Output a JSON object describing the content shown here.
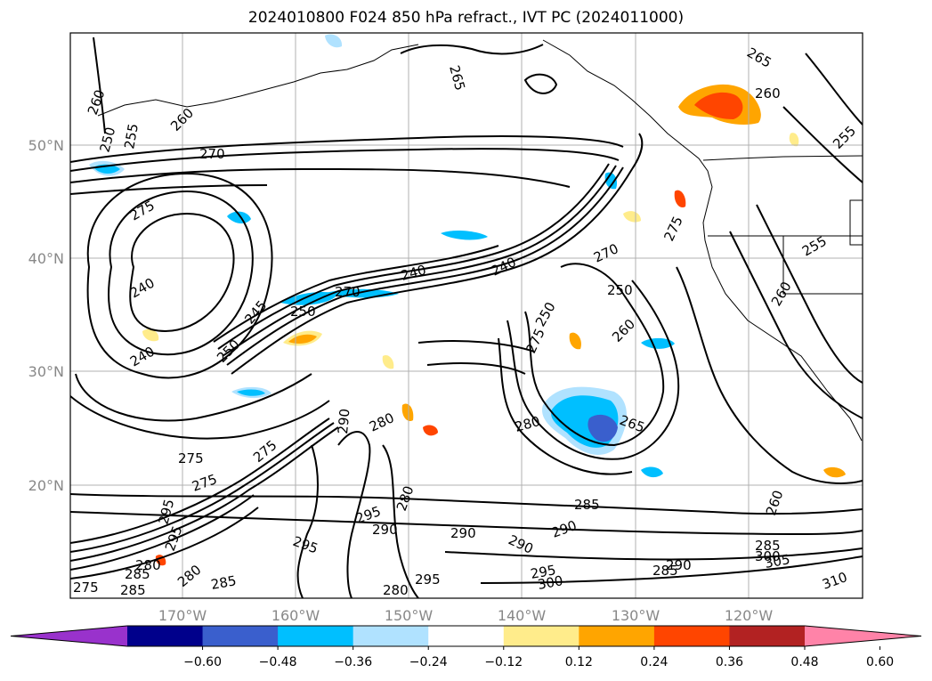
{
  "title": "2024010800 F024 850 hPa refract., IVT PC (2024011000)",
  "map": {
    "lon_labels": [
      "170°W",
      "160°W",
      "150°W",
      "140°W",
      "130°W",
      "120°W"
    ],
    "lat_labels": [
      "50°N",
      "40°N",
      "30°N",
      "20°N"
    ]
  },
  "colorbar": {
    "ticks": [
      "−0.60",
      "−0.48",
      "−0.36",
      "−0.24",
      "−0.12",
      "0.12",
      "0.24",
      "0.36",
      "0.48",
      "0.60"
    ],
    "colors": [
      "#9932cc",
      "#00008b",
      "#3a5fcd",
      "#00bfff",
      "#b0e2ff",
      "#ffffff",
      "#ffec8b",
      "#ffa500",
      "#ff4500",
      "#b22222",
      "#ff83a8"
    ]
  },
  "contour_labels": [
    "260",
    "250",
    "255",
    "260",
    "270",
    "275",
    "265",
    "265",
    "260",
    "255",
    "240",
    "240",
    "245",
    "250",
    "240",
    "240",
    "275",
    "270",
    "270",
    "250",
    "250",
    "260",
    "250",
    "275",
    "255",
    "260",
    "280",
    "290",
    "295",
    "280",
    "290",
    "275",
    "275",
    "295",
    "290",
    "285",
    "290",
    "290",
    "280",
    "265",
    "285",
    "290",
    "300",
    "295",
    "285",
    "310",
    "295",
    "300",
    "305",
    "280",
    "280",
    "285",
    "280",
    "275",
    "285",
    "295",
    "295",
    "275",
    "285",
    "260"
  ]
}
